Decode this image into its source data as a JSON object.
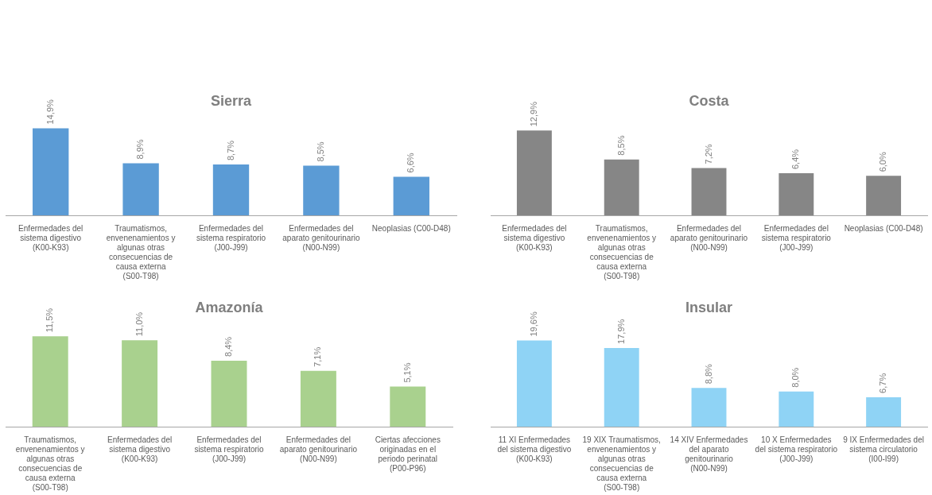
{
  "chart_data": [
    {
      "type": "bar",
      "title": "Sierra",
      "categories": [
        "Enfermedades del sistema digestivo (K00-K93)",
        "Traumatismos, envenenamientos y algunas otras consecuencias de causa externa (S00-T98)",
        "Enfermedades del sistema respiratorio (J00-J99)",
        "Enfermedades del aparato genitourinario (N00-N99)",
        "Neoplasias (C00-D48)"
      ],
      "values": [
        14.9,
        8.9,
        8.7,
        8.5,
        6.6
      ],
      "value_labels": [
        "14,9%",
        "8,9%",
        "8,7%",
        "8,5%",
        "6,6%"
      ],
      "color": "#5b9bd5",
      "legend": false
    },
    {
      "type": "bar",
      "title": "Costa",
      "categories": [
        "Enfermedades del sistema digestivo (K00-K93)",
        "Traumatismos, envenenamientos y algunas otras consecuencias de causa externa (S00-T98)",
        "Enfermedades del aparato genitourinario (N00-N99)",
        "Enfermedades del sistema respiratorio (J00-J99)",
        "Neoplasias (C00-D48)"
      ],
      "values": [
        12.9,
        8.5,
        7.2,
        6.4,
        6.0
      ],
      "value_labels": [
        "12,9%",
        "8,5%",
        "7,2%",
        "6,4%",
        "6,0%"
      ],
      "color": "#868686",
      "legend": false
    },
    {
      "type": "bar",
      "title": "Amazonía",
      "categories": [
        "Traumatismos, envenenamientos y algunas otras consecuencias de causa externa (S00-T98)",
        "Enfermedades del sistema digestivo (K00-K93)",
        "Enfermedades del sistema respiratorio (J00-J99)",
        "Enfermedades del aparato genitourinario (N00-N99)",
        "Ciertas afecciones originadas en el periodo perinatal (P00-P96)"
      ],
      "values": [
        11.5,
        11.0,
        8.4,
        7.1,
        5.1
      ],
      "value_labels": [
        "11,5%",
        "11,0%",
        "8,4%",
        "7,1%",
        "5,1%"
      ],
      "color": "#a9d18e",
      "legend": false
    },
    {
      "type": "bar",
      "title": "Insular",
      "categories": [
        "11 XI Enfermedades del sistema digestivo (K00-K93)",
        "19 XIX Traumatismos, envenenamientos y algunas otras consecuencias de causa externa (S00-T98)",
        "14 XIV Enfermedades del aparato genitourinario (N00-N99)",
        "10 X Enfermedades del sistema respiratorio (J00-J99)",
        "9 IX Enfermedades del sistema circulatorio (I00-I99)"
      ],
      "values": [
        19.6,
        17.9,
        8.8,
        8.0,
        6.7
      ],
      "value_labels": [
        "19,6%",
        "17,9%",
        "8,8%",
        "8,0%",
        "6,7%"
      ],
      "color": "#8fd3f5",
      "legend": false
    }
  ]
}
